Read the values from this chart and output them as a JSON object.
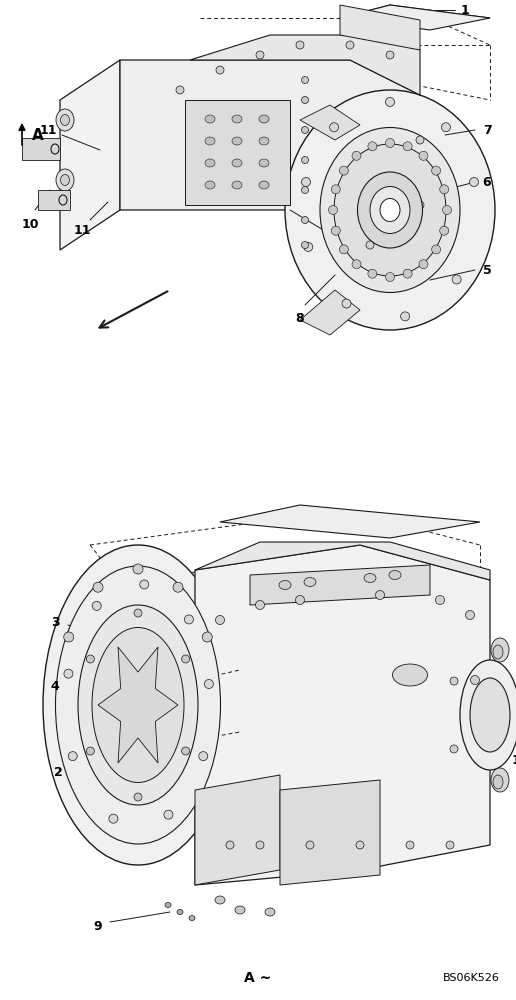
{
  "bg": "#ffffff",
  "bottom_text": "A ~",
  "ref_code": "BS06K526",
  "line_color": "#1a1a1a",
  "top_A_label": "A",
  "bottom_A_label": "A ~"
}
